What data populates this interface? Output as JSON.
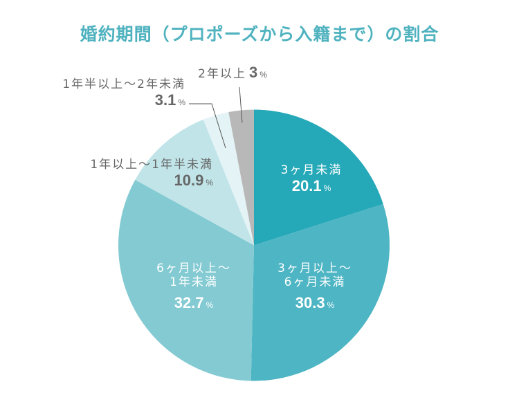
{
  "title": "婚約期間（プロポーズから入籍まで）の割合",
  "chart_data": {
    "type": "pie",
    "title": "婚約期間（プロポーズから入籍まで）の割合",
    "start_angle": "12 o'clock",
    "direction": "clockwise",
    "categories": [
      "3ヶ月未満",
      "3ヶ月以上〜6ヶ月未満",
      "6ヶ月以上〜1年未満",
      "1年以上〜1年半未満",
      "1年半以上〜2年未満",
      "2年以上"
    ],
    "values": [
      20.1,
      30.3,
      32.7,
      10.9,
      3.1,
      3
    ],
    "unit": "%",
    "colors": [
      "#25a8b8",
      "#4db5c3",
      "#83cad2",
      "#c0e4e8",
      "#e4f3f5",
      "#b8b8b8"
    ]
  },
  "labels": {
    "s0": {
      "line1": "3ヶ月未満",
      "value": "20.1",
      "pct": "%"
    },
    "s1": {
      "line1": "3ヶ月以上〜",
      "line2": "6ヶ月未満",
      "value": "30.3",
      "pct": "%"
    },
    "s2": {
      "line1": "6ヶ月以上〜",
      "line2": "1年未満",
      "value": "32.7",
      "pct": "%"
    },
    "s3": {
      "line1": "1年以上〜1年半未満",
      "value": "10.9",
      "pct": "%"
    },
    "s4": {
      "line1": "1年半以上〜2年未満",
      "value": "3.1",
      "pct": "%"
    },
    "s5": {
      "line1": "2年以上",
      "value": "3",
      "pct": "%"
    }
  }
}
